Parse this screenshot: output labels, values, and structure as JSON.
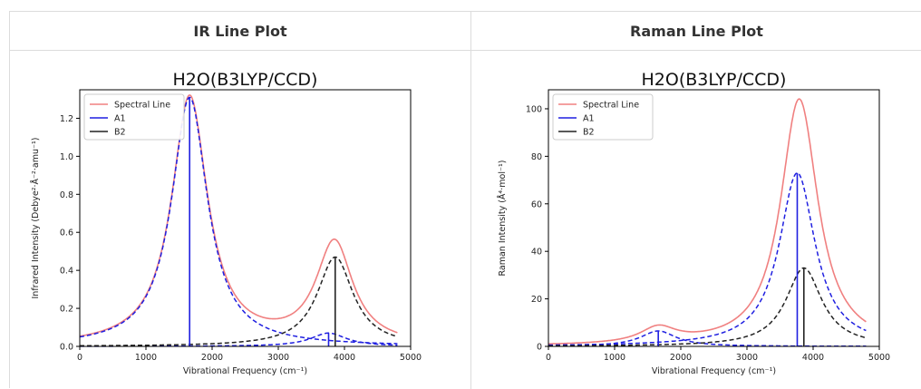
{
  "panels": [
    {
      "header": "IR Line Plot"
    },
    {
      "header": "Raman Line Plot"
    }
  ],
  "chart_data": [
    {
      "type": "line",
      "title": "H2O(B3LYP/CCD)",
      "xlabel": "Vibrational Frequency (cm⁻¹)",
      "ylabel": "Infrared Intensity (Debye²·Å⁻²·amu⁻¹)",
      "xlim": [
        0,
        5000
      ],
      "ylim": [
        0,
        1.35
      ],
      "xticks": [
        0,
        1000,
        2000,
        3000,
        4000,
        5000
      ],
      "yticks": [
        0.0,
        0.2,
        0.4,
        0.6,
        0.8,
        1.0,
        1.2
      ],
      "ytick_decimals": 1,
      "legend": [
        "Spectral Line",
        "A1",
        "B2"
      ],
      "legend_position": "top-left",
      "gamma": 330,
      "x_range": [
        0,
        4800
      ],
      "peaks": [
        {
          "mode": "A1",
          "freq": 1660,
          "intensity": 1.31,
          "color": "#1f1fe0"
        },
        {
          "mode": "A1",
          "freq": 3760,
          "intensity": 0.07,
          "color": "#1f1fe0"
        },
        {
          "mode": "B2",
          "freq": 3860,
          "intensity": 0.47,
          "color": "#222222"
        }
      ],
      "colors": {
        "spectral": "#f08080",
        "A1": "#1f1fe0",
        "B2": "#222222"
      }
    },
    {
      "type": "line",
      "title": "H2O(B3LYP/CCD)",
      "xlabel": "Vibrational Frequency (cm⁻¹)",
      "ylabel": "Raman Intensity (Å⁴·mol⁻¹)",
      "xlim": [
        0,
        5000
      ],
      "ylim": [
        0,
        108
      ],
      "xticks": [
        0,
        1000,
        2000,
        3000,
        4000,
        5000
      ],
      "yticks": [
        0,
        20,
        40,
        60,
        80,
        100
      ],
      "ytick_decimals": 0,
      "legend": [
        "Spectral Line",
        "A1",
        "B2"
      ],
      "legend_position": "top-left",
      "gamma": 330,
      "x_range": [
        0,
        4800
      ],
      "peaks": [
        {
          "mode": "A1",
          "freq": 1660,
          "intensity": 6.5,
          "color": "#1f1fe0"
        },
        {
          "mode": "A1",
          "freq": 3760,
          "intensity": 73,
          "color": "#1f1fe0"
        },
        {
          "mode": "B2",
          "freq": 3860,
          "intensity": 33,
          "color": "#222222"
        }
      ],
      "colors": {
        "spectral": "#f08080",
        "A1": "#1f1fe0",
        "B2": "#222222"
      }
    }
  ]
}
